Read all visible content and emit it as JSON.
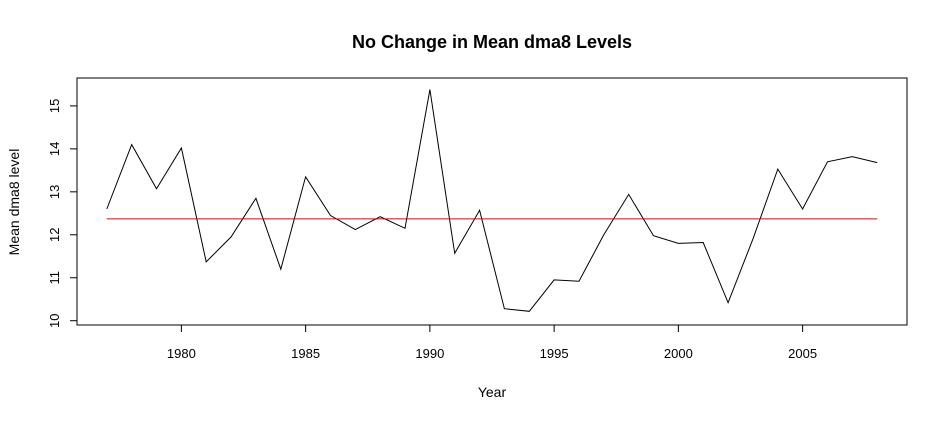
{
  "chart_data": {
    "type": "line",
    "title": "No Change in Mean dma8 Levels",
    "xlabel": "Year",
    "ylabel": "Mean dma8 level",
    "xlim": [
      1975.8,
      2009.2
    ],
    "ylim": [
      9.9,
      15.65
    ],
    "x_ticks": [
      1980,
      1985,
      1990,
      1995,
      2000,
      2005
    ],
    "y_ticks": [
      10,
      11,
      12,
      13,
      14,
      15
    ],
    "grid": false,
    "legend": "none",
    "series": [
      {
        "color": "#000000",
        "x": [
          1977,
          1978,
          1979,
          1980,
          1981,
          1982,
          1983,
          1984,
          1985,
          1986,
          1987,
          1988,
          1989,
          1990,
          1991,
          1992,
          1993,
          1994,
          1995,
          1996,
          1997,
          1998,
          1999,
          2000,
          2001,
          2002,
          2003,
          2004,
          2005,
          2006,
          2007,
          2008
        ],
        "values": [
          12.6,
          14.1,
          13.07,
          14.02,
          11.37,
          11.95,
          12.85,
          11.2,
          13.35,
          12.45,
          12.12,
          12.42,
          12.15,
          15.38,
          11.57,
          12.57,
          10.28,
          10.22,
          10.95,
          10.92,
          12.0,
          12.94,
          11.98,
          11.8,
          11.82,
          10.42,
          11.9,
          13.53,
          12.6,
          13.7,
          13.82,
          13.68
        ]
      },
      {
        "color": "#e00000",
        "x": [
          1977,
          2008
        ],
        "values": [
          12.37,
          12.37
        ]
      }
    ]
  }
}
